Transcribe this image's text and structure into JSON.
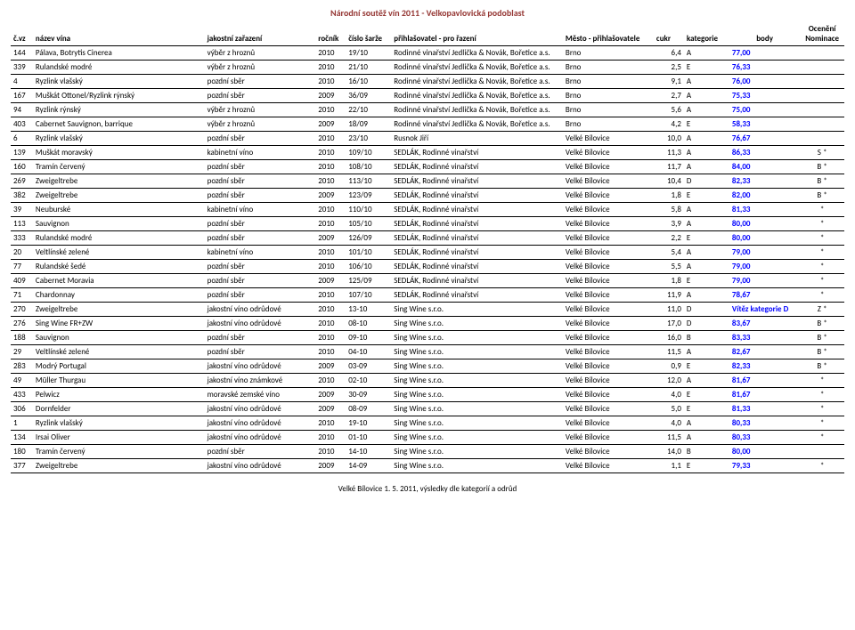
{
  "title": "Národní soutěž vín 2011 - Velkopavlovická podoblast",
  "footer": "Velké Bílovice 1. 5. 2011, výsledky dle kategorií a odrůd",
  "columns": [
    "č.vz",
    "název vína",
    "jakostní zařazení",
    "ročník",
    "číslo šarže",
    "přihlašovatel - pro řazení",
    "Město - přihlašovatele",
    "cukr",
    "kategorie",
    "body",
    "Ocenění Nominace"
  ],
  "rows": [
    [
      "144",
      "Pálava, Botrytis Cinerea",
      "výběr z hroznů",
      "2010",
      "19/10",
      "Rodinné vinařství Jedlička & Novák, Bořetice a.s.",
      "Brno",
      "6,4",
      "A",
      "77,00",
      ""
    ],
    [
      "339",
      "Rulandské modré",
      "výběr z hroznů",
      "2010",
      "21/10",
      "Rodinné vinařství Jedlička & Novák, Bořetice a.s.",
      "Brno",
      "2,5",
      "E",
      "76,33",
      ""
    ],
    [
      "4",
      "Ryzlink vlašský",
      "pozdní sběr",
      "2010",
      "16/10",
      "Rodinné vinařství Jedlička & Novák, Bořetice a.s.",
      "Brno",
      "9,1",
      "A",
      "76,00",
      ""
    ],
    [
      "167",
      "Muškát Ottonel/Ryzlink rýnský",
      "pozdní sběr",
      "2009",
      "36/09",
      "Rodinné vinařství Jedlička & Novák, Bořetice a.s.",
      "Brno",
      "2,7",
      "A",
      "75,33",
      ""
    ],
    [
      "94",
      "Ryzlink rýnský",
      "výběr z hroznů",
      "2010",
      "22/10",
      "Rodinné vinařství Jedlička & Novák, Bořetice a.s.",
      "Brno",
      "5,6",
      "A",
      "75,00",
      ""
    ],
    [
      "403",
      "Cabernet Sauvignon, barrique",
      "výběr z hroznů",
      "2009",
      "18/09",
      "Rodinné vinařství Jedlička & Novák, Bořetice a.s.",
      "Brno",
      "4,2",
      "E",
      "58,33",
      ""
    ],
    [
      "6",
      "Ryzlink vlašský",
      "pozdní sběr",
      "2010",
      "23/10",
      "Rusnok Jiří",
      "Velké Bílovice",
      "10,0",
      "A",
      "76,67",
      ""
    ],
    [
      "139",
      "Muškát moravský",
      "kabinetní víno",
      "2010",
      "109/10",
      "SEDLÁK, Rodinné vinařství",
      "Velké Bílovice",
      "11,3",
      "A",
      "86,33",
      "S *"
    ],
    [
      "160",
      "Tramín červený",
      "pozdní sběr",
      "2010",
      "108/10",
      "SEDLÁK, Rodinné vinařství",
      "Velké Bílovice",
      "11,7",
      "A",
      "84,00",
      "B *"
    ],
    [
      "269",
      "Zweigeltrebe",
      "pozdní sběr",
      "2010",
      "113/10",
      "SEDLÁK, Rodinné vinařství",
      "Velké Bílovice",
      "10,4",
      "D",
      "82,33",
      "B *"
    ],
    [
      "382",
      "Zweigeltrebe",
      "pozdní sběr",
      "2009",
      "123/09",
      "SEDLÁK, Rodinné vinařství",
      "Velké Bílovice",
      "1,8",
      "E",
      "82,00",
      "B *"
    ],
    [
      "39",
      "Neuburské",
      "kabinetní víno",
      "2010",
      "110/10",
      "SEDLÁK, Rodinné vinařství",
      "Velké Bílovice",
      "5,8",
      "A",
      "81,33",
      "*"
    ],
    [
      "113",
      "Sauvignon",
      "pozdní sběr",
      "2010",
      "105/10",
      "SEDLÁK, Rodinné vinařství",
      "Velké Bílovice",
      "3,9",
      "A",
      "80,00",
      "*"
    ],
    [
      "333",
      "Rulandské modré",
      "pozdní sběr",
      "2009",
      "126/09",
      "SEDLÁK, Rodinné vinařství",
      "Velké Bílovice",
      "2,2",
      "E",
      "80,00",
      "*"
    ],
    [
      "20",
      "Veltlínské zelené",
      "kabinetní víno",
      "2010",
      "101/10",
      "SEDLÁK, Rodinné vinařství",
      "Velké Bílovice",
      "5,4",
      "A",
      "79,00",
      "*"
    ],
    [
      "77",
      "Rulandské šedé",
      "pozdní sběr",
      "2010",
      "106/10",
      "SEDLÁK, Rodinné vinařství",
      "Velké Bílovice",
      "5,5",
      "A",
      "79,00",
      "*"
    ],
    [
      "409",
      "Cabernet Moravia",
      "pozdní sběr",
      "2009",
      "125/09",
      "SEDLÁK, Rodinné vinařství",
      "Velké Bílovice",
      "1,8",
      "E",
      "79,00",
      "*"
    ],
    [
      "71",
      "Chardonnay",
      "pozdní sběr",
      "2010",
      "107/10",
      "SEDLÁK, Rodinné vinařství",
      "Velké Bílovice",
      "11,9",
      "A",
      "78,67",
      "*"
    ],
    [
      "270",
      "Zweigeltrebe",
      "jakostní víno odrůdové",
      "2010",
      "13-10",
      "Sing Wine s.r.o.",
      "Velké Bílovice",
      "11,0",
      "D",
      "Vítěz kategorie D",
      "Z *"
    ],
    [
      "276",
      "Sing Wine FR+ZW",
      "jakostní víno odrůdové",
      "2010",
      "08-10",
      "Sing Wine s.r.o.",
      "Velké Bílovice",
      "17,0",
      "D",
      "83,67",
      "B *"
    ],
    [
      "188",
      "Sauvignon",
      "pozdní sběr",
      "2010",
      "09-10",
      "Sing Wine s.r.o.",
      "Velké Bílovice",
      "16,0",
      "B",
      "83,33",
      "B *"
    ],
    [
      "29",
      "Veltlínské zelené",
      "pozdní sběr",
      "2010",
      "04-10",
      "Sing Wine s.r.o.",
      "Velké Bílovice",
      "11,5",
      "A",
      "82,67",
      "B *"
    ],
    [
      "283",
      "Modrý Portugal",
      "jakostní víno odrůdové",
      "2009",
      "03-09",
      "Sing Wine s.r.o.",
      "Velké Bílovice",
      "0,9",
      "E",
      "82,33",
      "B *"
    ],
    [
      "49",
      "Müller Thurgau",
      "jakostní víno známkové",
      "2010",
      "02-10",
      "Sing Wine s.r.o.",
      "Velké Bílovice",
      "12,0",
      "A",
      "81,67",
      "*"
    ],
    [
      "433",
      "Pelwicz",
      "moravské zemské víno",
      "2009",
      "30-09",
      "Sing Wine s.r.o.",
      "Velké Bílovice",
      "4,0",
      "E",
      "81,67",
      "*"
    ],
    [
      "306",
      "Dornfelder",
      "jakostní víno odrůdové",
      "2009",
      "08-09",
      "Sing Wine s.r.o.",
      "Velké Bílovice",
      "5,0",
      "E",
      "81,33",
      "*"
    ],
    [
      "1",
      "Ryzlink vlašský",
      "jakostní víno odrůdové",
      "2010",
      "19-10",
      "Sing Wine s.r.o.",
      "Velké Bílovice",
      "4,0",
      "A",
      "80,33",
      "*"
    ],
    [
      "134",
      "Irsai Oliver",
      "jakostní víno odrůdové",
      "2010",
      "01-10",
      "Sing Wine s.r.o.",
      "Velké Bílovice",
      "11,5",
      "A",
      "80,33",
      "*"
    ],
    [
      "180",
      "Tramín červený",
      "pozdní sběr",
      "2010",
      "14-10",
      "Sing Wine s.r.o.",
      "Velké Bílovice",
      "14,0",
      "B",
      "80,00",
      ""
    ],
    [
      "377",
      "Zweigeltrebe",
      "jakostní víno odrůdové",
      "2009",
      "14-09",
      "Sing Wine s.r.o.",
      "Velké Bílovice",
      "1,1",
      "E",
      "79,33",
      "*"
    ]
  ],
  "body_color": "#0000ff",
  "title_color": "#953734",
  "border_color": "#000000"
}
